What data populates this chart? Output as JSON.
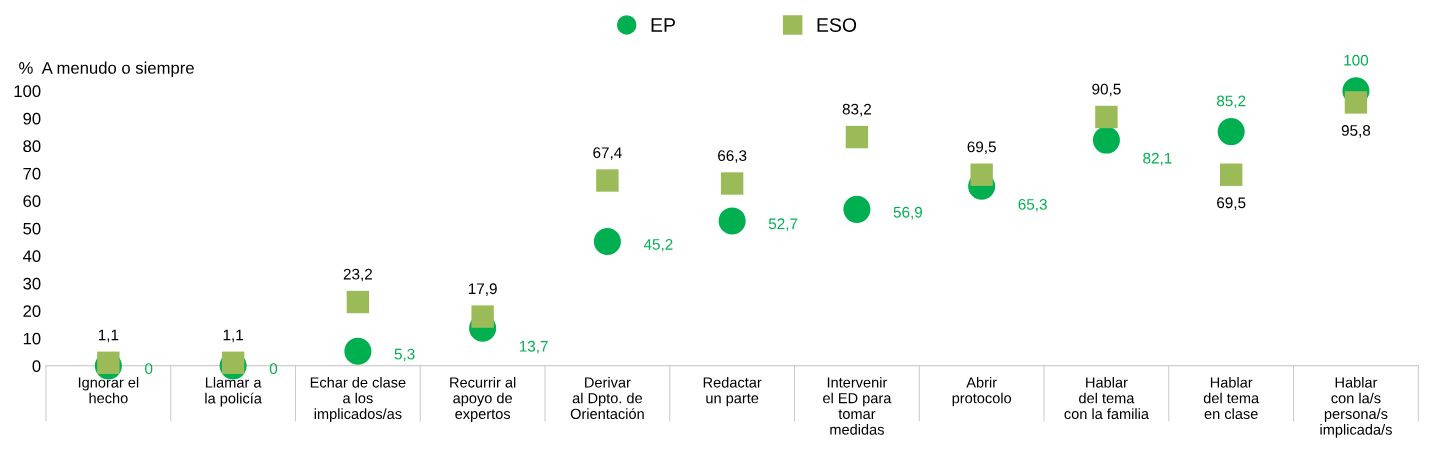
{
  "chart_data": {
    "type": "scatter",
    "ylabel": "%  A menudo o siempre",
    "categories": [
      "Ignorar el\nhecho",
      "Llamar a\nla policía",
      "Echar de clase\na los\nimplicados/as",
      "Recurrir al\napoyo de\nexpertos",
      "Derivar\nal Dpto. de\nOrientación",
      "Redactar\nun parte",
      "Intervenir\nel ED para\ntomar\nmedidas",
      "Abrir\nprotocolo",
      "Hablar\ndel tema\ncon la familia",
      "Hablar\ndel tema\nen clase",
      "Hablar\ncon la/s\npersona/s\nimplicada/s"
    ],
    "series": [
      {
        "name": "EP",
        "color": "#00b050",
        "marker": "circle",
        "values": [
          0,
          0,
          5.3,
          13.7,
          45.2,
          52.7,
          56.9,
          65.3,
          82.1,
          85.2,
          100
        ],
        "value_labels": [
          "0",
          "0",
          "5,3",
          "13,7",
          "45,2",
          "52,7",
          "56,9",
          "65,3",
          "82,1",
          "85,2",
          "100"
        ]
      },
      {
        "name": "ESO",
        "color": "#9bbb59",
        "marker": "square",
        "values": [
          1.1,
          1.1,
          23.2,
          17.9,
          67.4,
          66.3,
          83.2,
          69.5,
          90.5,
          69.5,
          95.8
        ],
        "value_labels": [
          "1,1",
          "1,1",
          "23,2",
          "17,9",
          "67,4",
          "66,3",
          "83,2",
          "69,5",
          "90,5",
          "69,5",
          "95,8"
        ]
      }
    ],
    "ylim": [
      0,
      100
    ],
    "yticks": [
      0,
      10,
      20,
      30,
      40,
      50,
      60,
      70,
      80,
      90,
      100
    ],
    "grid": false,
    "legend": "top"
  }
}
